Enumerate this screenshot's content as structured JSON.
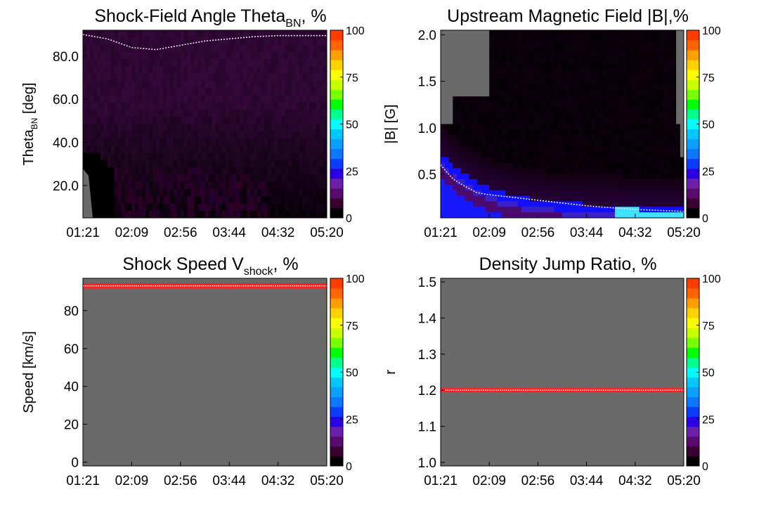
{
  "colorbar": {
    "ticks": [
      "0",
      "25",
      "50",
      "75",
      "100"
    ],
    "colors": [
      "#000000",
      "#3a0030",
      "#5a0a6e",
      "#6a20a8",
      "#2a00e6",
      "#0a3cff",
      "#0a78ff",
      "#0aa0ff",
      "#00c8ff",
      "#00ffff",
      "#00ff8c",
      "#00ff00",
      "#78ff00",
      "#c8ff00",
      "#ffff00",
      "#ffd200",
      "#ffa000",
      "#ff6400",
      "#ff3c00"
    ]
  },
  "chart_data": [
    {
      "type": "heatmap",
      "title_main": "Shock-Field Angle Theta",
      "title_sub": "BN",
      "title_tail": ", %",
      "ylabel_main": "Theta",
      "ylabel_sub": "BN",
      "ylabel_tail": " [deg]",
      "xticks": [
        "01:21",
        "02:09",
        "02:56",
        "03:44",
        "04:32",
        "05:20"
      ],
      "yticks": [
        "20.0",
        "40.0",
        "60.0",
        "80.0"
      ],
      "ytick_values": [
        20,
        40,
        60,
        80
      ],
      "ylim": [
        5,
        92
      ],
      "median_curve": [
        [
          0,
          90
        ],
        [
          0.1,
          88
        ],
        [
          0.2,
          84
        ],
        [
          0.3,
          83
        ],
        [
          0.4,
          85
        ],
        [
          0.5,
          87
        ],
        [
          0.6,
          88
        ],
        [
          0.7,
          89
        ],
        [
          0.8,
          89.5
        ],
        [
          0.9,
          89.5
        ],
        [
          1.0,
          89.5
        ]
      ],
      "background_color": "#6a6a6a",
      "fill_color": "#3c0f42"
    },
    {
      "type": "heatmap",
      "title_main": "Upstream Magnetic Field |B|,%",
      "title_sub": "",
      "title_tail": "",
      "ylabel_main": "|B| [G]",
      "ylabel_sub": "",
      "ylabel_tail": "",
      "xticks": [
        "01:21",
        "02:09",
        "02:56",
        "03:44",
        "04:32",
        "05:20"
      ],
      "yticks": [
        "0.5",
        "1.0",
        "1.5",
        "2.0"
      ],
      "ytick_values": [
        0.5,
        1.0,
        1.5,
        2.0
      ],
      "ylim": [
        0.03,
        2.05
      ],
      "median_curve": [
        [
          0,
          0.6
        ],
        [
          0.05,
          0.45
        ],
        [
          0.1,
          0.37
        ],
        [
          0.15,
          0.3
        ],
        [
          0.2,
          0.28
        ],
        [
          0.3,
          0.25
        ],
        [
          0.4,
          0.22
        ],
        [
          0.5,
          0.19
        ],
        [
          0.6,
          0.16
        ],
        [
          0.7,
          0.14
        ],
        [
          0.8,
          0.12
        ],
        [
          0.9,
          0.11
        ],
        [
          1.0,
          0.1
        ]
      ],
      "background_color": "#6a6a6a",
      "fill_color": "#050005"
    },
    {
      "type": "heatmap",
      "title_main": "Shock Speed V",
      "title_sub": "shock",
      "title_tail": ", %",
      "ylabel_main": "Speed [km/s]",
      "ylabel_sub": "",
      "ylabel_tail": "",
      "xticks": [
        "01:21",
        "02:09",
        "02:56",
        "03:44",
        "04:32",
        "05:20"
      ],
      "yticks": [
        "0",
        "20",
        "40",
        "60",
        "80"
      ],
      "ytick_values": [
        0,
        20,
        40,
        60,
        80
      ],
      "ylim": [
        -2,
        97
      ],
      "band": {
        "value": 93,
        "half_width": 1.4,
        "color": "#ff2020"
      },
      "background_color": "#6a6a6a"
    },
    {
      "type": "heatmap",
      "title_main": "Density Jump Ratio, %",
      "title_sub": "",
      "title_tail": "",
      "ylabel_main": "r",
      "ylabel_sub": "",
      "ylabel_tail": "",
      "xticks": [
        "01:21",
        "02:09",
        "02:56",
        "03:44",
        "04:32",
        "05:20"
      ],
      "yticks": [
        "1.0",
        "1.1",
        "1.2",
        "1.3",
        "1.4",
        "1.5"
      ],
      "ytick_values": [
        1.0,
        1.1,
        1.2,
        1.3,
        1.4,
        1.5
      ],
      "ylim": [
        0.99,
        1.51
      ],
      "band": {
        "value": 1.2,
        "half_width": 0.006,
        "color": "#ff2020"
      },
      "background_color": "#6a6a6a"
    }
  ]
}
